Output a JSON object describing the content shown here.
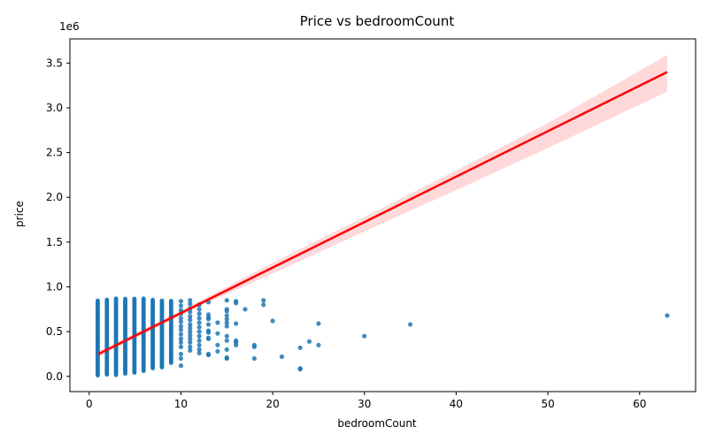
{
  "chart_data": {
    "type": "scatter",
    "title": "Price vs bedroomCount",
    "xlabel": "bedroomCount",
    "ylabel": "price",
    "y_offset_label": "1e6",
    "xlim": [
      -2.1,
      66.1
    ],
    "ylim": [
      -170000,
      3770000
    ],
    "x_ticks": [
      0,
      10,
      20,
      30,
      40,
      50,
      60
    ],
    "x_tick_labels": [
      "0",
      "10",
      "20",
      "30",
      "40",
      "50",
      "60"
    ],
    "y_ticks": [
      0,
      500000,
      1000000,
      1500000,
      2000000,
      2500000,
      3000000,
      3500000
    ],
    "y_tick_labels": [
      "0.0",
      "0.5",
      "1.0",
      "1.5",
      "2.0",
      "2.5",
      "3.0",
      "3.5"
    ],
    "grid": false,
    "colors": {
      "points": "#1f77b4",
      "regression_line": "#ff0000",
      "confidence_band": "#ff0000"
    },
    "dense_columns": [
      {
        "x": 1,
        "min": 10000,
        "max": 850000
      },
      {
        "x": 2,
        "min": 20000,
        "max": 860000
      },
      {
        "x": 3,
        "min": 15000,
        "max": 870000
      },
      {
        "x": 4,
        "min": 30000,
        "max": 870000
      },
      {
        "x": 5,
        "min": 40000,
        "max": 870000
      },
      {
        "x": 6,
        "min": 60000,
        "max": 870000
      },
      {
        "x": 7,
        "min": 90000,
        "max": 860000
      },
      {
        "x": 8,
        "min": 100000,
        "max": 850000
      },
      {
        "x": 9,
        "min": 150000,
        "max": 850000
      }
    ],
    "points": [
      {
        "x": 10,
        "y": 120000
      },
      {
        "x": 10,
        "y": 200000
      },
      {
        "x": 10,
        "y": 250000
      },
      {
        "x": 10,
        "y": 330000
      },
      {
        "x": 10,
        "y": 380000
      },
      {
        "x": 10,
        "y": 420000
      },
      {
        "x": 10,
        "y": 470000
      },
      {
        "x": 10,
        "y": 520000
      },
      {
        "x": 10,
        "y": 560000
      },
      {
        "x": 10,
        "y": 610000
      },
      {
        "x": 10,
        "y": 650000
      },
      {
        "x": 10,
        "y": 700000
      },
      {
        "x": 10,
        "y": 740000
      },
      {
        "x": 10,
        "y": 790000
      },
      {
        "x": 10,
        "y": 840000
      },
      {
        "x": 11,
        "y": 290000
      },
      {
        "x": 11,
        "y": 330000
      },
      {
        "x": 11,
        "y": 380000
      },
      {
        "x": 11,
        "y": 420000
      },
      {
        "x": 11,
        "y": 460000
      },
      {
        "x": 11,
        "y": 500000
      },
      {
        "x": 11,
        "y": 540000
      },
      {
        "x": 11,
        "y": 580000
      },
      {
        "x": 11,
        "y": 630000
      },
      {
        "x": 11,
        "y": 670000
      },
      {
        "x": 11,
        "y": 720000
      },
      {
        "x": 11,
        "y": 760000
      },
      {
        "x": 11,
        "y": 810000
      },
      {
        "x": 11,
        "y": 850000
      },
      {
        "x": 12,
        "y": 260000
      },
      {
        "x": 12,
        "y": 300000
      },
      {
        "x": 12,
        "y": 350000
      },
      {
        "x": 12,
        "y": 400000
      },
      {
        "x": 12,
        "y": 450000
      },
      {
        "x": 12,
        "y": 500000
      },
      {
        "x": 12,
        "y": 550000
      },
      {
        "x": 12,
        "y": 600000
      },
      {
        "x": 12,
        "y": 650000
      },
      {
        "x": 12,
        "y": 700000
      },
      {
        "x": 12,
        "y": 750000
      },
      {
        "x": 12,
        "y": 800000
      },
      {
        "x": 13,
        "y": 240000
      },
      {
        "x": 13,
        "y": 250000
      },
      {
        "x": 13,
        "y": 420000
      },
      {
        "x": 13,
        "y": 430000
      },
      {
        "x": 13,
        "y": 490000
      },
      {
        "x": 13,
        "y": 510000
      },
      {
        "x": 13,
        "y": 580000
      },
      {
        "x": 13,
        "y": 640000
      },
      {
        "x": 13,
        "y": 660000
      },
      {
        "x": 13,
        "y": 690000
      },
      {
        "x": 13,
        "y": 830000
      },
      {
        "x": 14,
        "y": 280000
      },
      {
        "x": 14,
        "y": 350000
      },
      {
        "x": 14,
        "y": 480000
      },
      {
        "x": 14,
        "y": 600000
      },
      {
        "x": 15,
        "y": 200000
      },
      {
        "x": 15,
        "y": 210000
      },
      {
        "x": 15,
        "y": 300000
      },
      {
        "x": 15,
        "y": 400000
      },
      {
        "x": 15,
        "y": 450000
      },
      {
        "x": 15,
        "y": 560000
      },
      {
        "x": 15,
        "y": 600000
      },
      {
        "x": 15,
        "y": 640000
      },
      {
        "x": 15,
        "y": 680000
      },
      {
        "x": 15,
        "y": 730000
      },
      {
        "x": 15,
        "y": 750000
      },
      {
        "x": 15,
        "y": 850000
      },
      {
        "x": 16,
        "y": 350000
      },
      {
        "x": 16,
        "y": 380000
      },
      {
        "x": 16,
        "y": 400000
      },
      {
        "x": 16,
        "y": 590000
      },
      {
        "x": 16,
        "y": 820000
      },
      {
        "x": 16,
        "y": 840000
      },
      {
        "x": 17,
        "y": 750000
      },
      {
        "x": 18,
        "y": 200000
      },
      {
        "x": 18,
        "y": 330000
      },
      {
        "x": 18,
        "y": 350000
      },
      {
        "x": 19,
        "y": 800000
      },
      {
        "x": 19,
        "y": 850000
      },
      {
        "x": 20,
        "y": 620000
      },
      {
        "x": 21,
        "y": 220000
      },
      {
        "x": 23,
        "y": 80000
      },
      {
        "x": 23,
        "y": 90000
      },
      {
        "x": 23,
        "y": 320000
      },
      {
        "x": 24,
        "y": 390000
      },
      {
        "x": 25,
        "y": 350000
      },
      {
        "x": 25,
        "y": 590000
      },
      {
        "x": 30,
        "y": 450000
      },
      {
        "x": 35,
        "y": 580000
      },
      {
        "x": 63,
        "y": 680000
      }
    ],
    "regression_line": {
      "x": [
        1,
        63
      ],
      "y": [
        250000,
        3400000
      ]
    },
    "confidence_band": {
      "x": [
        1,
        12,
        20,
        30,
        40,
        50,
        63
      ],
      "lower": [
        220000,
        780000,
        1150000,
        1620000,
        2080000,
        2550000,
        3180000
      ],
      "upper": [
        280000,
        840000,
        1270000,
        1780000,
        2300000,
        2830000,
        3590000
      ]
    }
  }
}
